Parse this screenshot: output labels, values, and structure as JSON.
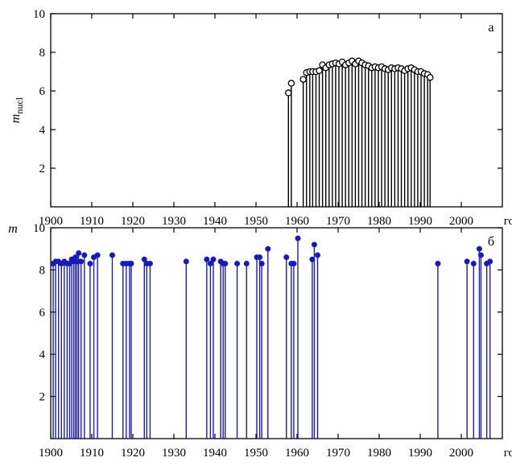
{
  "chart_data": [
    {
      "type": "stem",
      "panel_label": "а",
      "ylabel": "m",
      "ylabel_sub": "nucl",
      "xlabel": "год",
      "xlim": [
        1900,
        2010
      ],
      "ylim": [
        0,
        10
      ],
      "x_ticks": [
        1900,
        1910,
        1920,
        1930,
        1940,
        1950,
        1960,
        1970,
        1980,
        1990,
        2000
      ],
      "y_ticks": [
        2,
        4,
        6,
        8,
        10
      ],
      "marker": "open-circle",
      "color": "#000000",
      "x": [
        1957.9,
        1958.6,
        1961.5,
        1962.3,
        1963.1,
        1963.8,
        1964.6,
        1965.4,
        1966.2,
        1967.0,
        1967.8,
        1968.6,
        1969.4,
        1970.2,
        1971.0,
        1971.8,
        1972.6,
        1973.4,
        1974.2,
        1975.0,
        1975.8,
        1976.6,
        1977.4,
        1978.2,
        1979.0,
        1979.8,
        1980.6,
        1981.4,
        1982.2,
        1983.0,
        1983.8,
        1984.6,
        1985.4,
        1986.2,
        1987.0,
        1987.8,
        1988.6,
        1989.4,
        1990.2,
        1991.0,
        1991.8,
        1992.4
      ],
      "y": [
        5.9,
        6.4,
        6.6,
        6.95,
        7.0,
        7.0,
        7.0,
        7.05,
        7.35,
        7.2,
        7.35,
        7.4,
        7.45,
        7.4,
        7.5,
        7.35,
        7.45,
        7.55,
        7.4,
        7.55,
        7.45,
        7.35,
        7.3,
        7.2,
        7.25,
        7.2,
        7.25,
        7.15,
        7.1,
        7.2,
        7.15,
        7.2,
        7.15,
        7.05,
        7.15,
        7.2,
        7.1,
        7.0,
        7.0,
        6.9,
        6.85,
        6.7
      ]
    },
    {
      "type": "stem",
      "panel_label": "б",
      "ylabel": "m",
      "xlabel": "год",
      "xlim": [
        1900,
        2010
      ],
      "ylim": [
        0,
        10
      ],
      "x_ticks": [
        1900,
        1910,
        1920,
        1930,
        1940,
        1950,
        1960,
        1970,
        1980,
        1990,
        2000
      ],
      "y_ticks": [
        2,
        4,
        6,
        8,
        10
      ],
      "marker": "filled-circle",
      "color": "#1a1ab8",
      "x": [
        1900.6,
        1901.2,
        1901.9,
        1902.6,
        1903.3,
        1904.0,
        1904.6,
        1905.1,
        1905.6,
        1906.0,
        1906.4,
        1906.8,
        1907.4,
        1908.2,
        1909.6,
        1910.5,
        1911.4,
        1915.0,
        1917.6,
        1918.4,
        1919.2,
        1919.6,
        1922.8,
        1923.4,
        1924.2,
        1933.0,
        1938.0,
        1938.9,
        1939.6,
        1941.4,
        1942.0,
        1942.5,
        1945.4,
        1947.7,
        1950.2,
        1950.9,
        1951.4,
        1952.9,
        1957.4,
        1958.6,
        1959.2,
        1960.2,
        1963.7,
        1964.2,
        1965.0,
        1994.3,
        2001.4,
        2003.0,
        2004.4,
        2004.8,
        2006.2,
        2007.0
      ],
      "y": [
        8.3,
        8.4,
        8.4,
        8.3,
        8.4,
        8.3,
        8.3,
        8.5,
        8.4,
        8.6,
        8.4,
        8.8,
        8.4,
        8.7,
        8.3,
        8.6,
        8.7,
        8.7,
        8.3,
        8.3,
        8.3,
        8.3,
        8.5,
        8.3,
        8.3,
        8.4,
        8.5,
        8.3,
        8.5,
        8.4,
        8.3,
        8.3,
        8.3,
        8.3,
        8.6,
        8.6,
        8.3,
        9.0,
        8.6,
        8.3,
        8.3,
        9.5,
        8.5,
        9.2,
        8.7,
        8.3,
        8.4,
        8.3,
        9.0,
        8.7,
        8.3,
        8.4
      ]
    }
  ]
}
